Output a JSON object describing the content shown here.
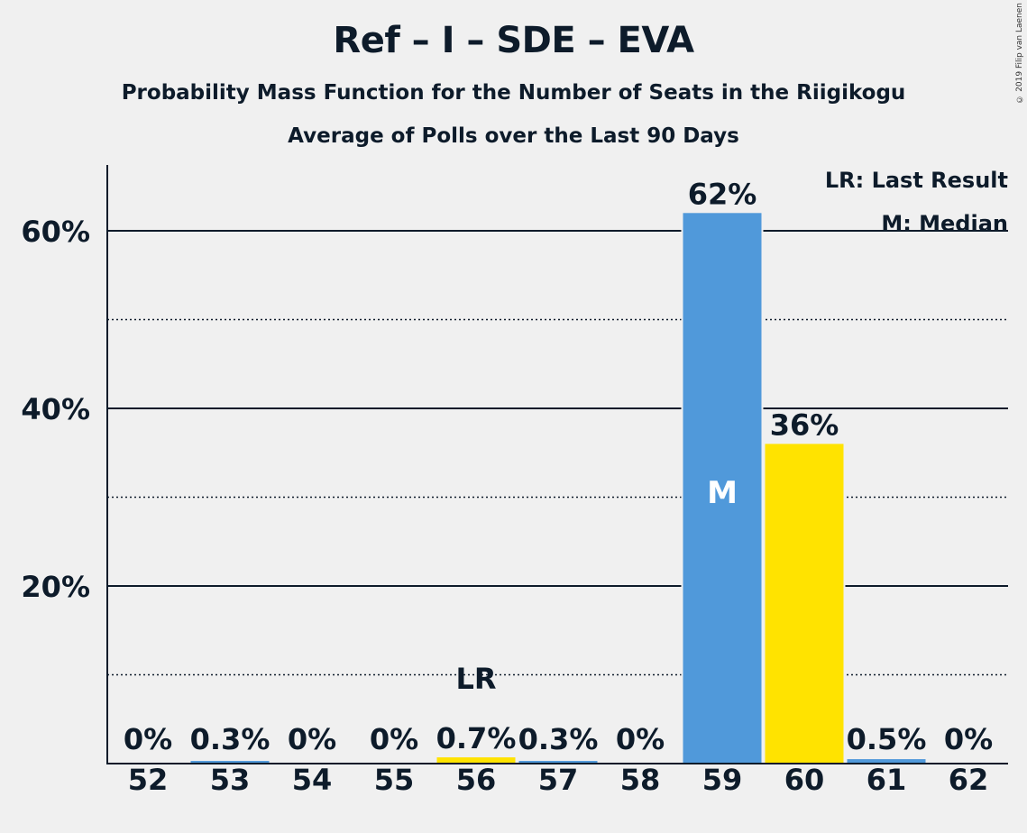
{
  "title": "Ref – I – SDE – EVA",
  "subtitle1": "Probability Mass Function for the Number of Seats in the Riigikogu",
  "subtitle2": "Average of Polls over the Last 90 Days",
  "copyright": "© 2019 Filip van Laenen",
  "legend": {
    "last_result": "LR: Last Result",
    "median": "M: Median"
  },
  "colors": {
    "blue": "#5099da",
    "yellow": "#ffe300",
    "background": "#f0f0f0",
    "text": "#0d1b2a"
  },
  "chart_data": {
    "type": "bar",
    "categories": [
      "52",
      "53",
      "54",
      "55",
      "56",
      "57",
      "58",
      "59",
      "60",
      "61",
      "62"
    ],
    "values": [
      0,
      0.3,
      0,
      0,
      0.7,
      0.3,
      0,
      62,
      36,
      0.5,
      0
    ],
    "labels": [
      "0%",
      "0.3%",
      "0%",
      "0%",
      "0.7%",
      "0.3%",
      "0%",
      "62%",
      "36%",
      "0.5%",
      "0%"
    ],
    "bar_colors": [
      "blue",
      "blue",
      "blue",
      "blue",
      "yellow",
      "blue",
      "blue",
      "blue",
      "yellow",
      "blue",
      "blue"
    ],
    "y_ticks": [
      20,
      40,
      60
    ],
    "y_tick_labels": [
      "20%",
      "40%",
      "60%"
    ],
    "y_minor_ticks": [
      10,
      30,
      50
    ],
    "ylim": [
      0,
      67.5
    ],
    "last_result": {
      "category": "56",
      "label": "LR"
    },
    "median": {
      "category": "59",
      "label": "M"
    }
  }
}
